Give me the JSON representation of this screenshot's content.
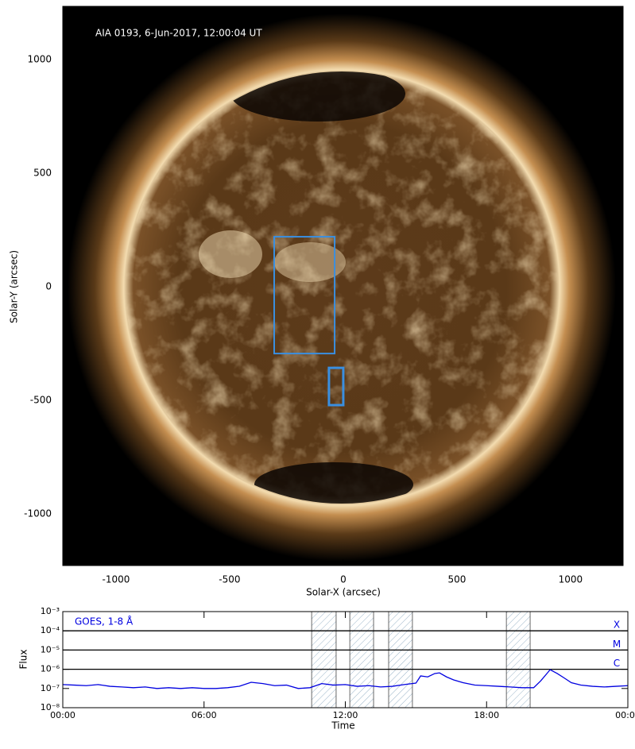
{
  "chart_data": [
    {
      "type": "image",
      "annotation": "AIA 0193, 6-Jun-2017, 12:00:04 UT",
      "x_label": "Solar-X (arcsec)",
      "y_label": "Solar-Y (arcsec)",
      "xlim": [
        -1234,
        1231
      ],
      "ylim": [
        -1227,
        1234
      ],
      "xticks": [
        -1000,
        -500,
        0,
        500,
        1000
      ],
      "yticks": [
        -1000,
        -500,
        0,
        500,
        1000
      ],
      "box_color": "#3a8fe0",
      "boxes": [
        {
          "x0": -304,
          "x1": -38,
          "y0": -294,
          "y1": 220
        },
        {
          "x0": -63,
          "x1": 0,
          "y0": -521,
          "y1": -357
        }
      ]
    },
    {
      "type": "line",
      "annotation": "GOES, 1-8 Å",
      "x_label": "Time",
      "y_label": "Flux",
      "log_y": true,
      "xlim": [
        0,
        24
      ],
      "ylim": [
        1e-08,
        0.001
      ],
      "xticks": [
        {
          "value": 0,
          "label": "00:00"
        },
        {
          "value": 6,
          "label": "06:00"
        },
        {
          "value": 12,
          "label": "12:00"
        },
        {
          "value": 18,
          "label": "18:00"
        },
        {
          "value": 24,
          "label": "00:00"
        }
      ],
      "yticks": [
        {
          "value": 1e-08,
          "label": "10⁻⁸"
        },
        {
          "value": 1e-07,
          "label": "10⁻⁷"
        },
        {
          "value": 1e-06,
          "label": "10⁻⁶"
        },
        {
          "value": 1e-05,
          "label": "10⁻⁵"
        },
        {
          "value": 0.0001,
          "label": "10⁻⁴"
        },
        {
          "value": 0.001,
          "label": "10⁻³"
        }
      ],
      "levels": [
        {
          "label": "X",
          "value": 0.0001
        },
        {
          "label": "M",
          "value": 1e-05
        },
        {
          "label": "C",
          "value": 1e-06
        }
      ],
      "shaded_ranges": [
        [
          10.57,
          11.61
        ],
        [
          12.19,
          13.2
        ],
        [
          13.84,
          14.85
        ],
        [
          18.84,
          19.85
        ]
      ],
      "series": [
        {
          "color": "#0000e0",
          "x": [
            0,
            0.5,
            1,
            1.5,
            2,
            2.5,
            3,
            3.5,
            4,
            4.5,
            5,
            5.5,
            6,
            6.5,
            7,
            7.5,
            8,
            8.5,
            9,
            9.5,
            10,
            10.5,
            11,
            11.5,
            12,
            12.5,
            13,
            13.5,
            14,
            14.5,
            15,
            15.2,
            15.5,
            15.8,
            16,
            16.3,
            16.6,
            17,
            17.5,
            18,
            18.5,
            19,
            19.5,
            20,
            20.3,
            20.7,
            21,
            21.3,
            21.6,
            22,
            22.5,
            23,
            23.5,
            24
          ],
          "values": [
            1.6e-07,
            1.5e-07,
            1.4e-07,
            1.6e-07,
            1.3e-07,
            1.2e-07,
            1.1e-07,
            1.2e-07,
            1e-07,
            1.1e-07,
            1e-07,
            1.1e-07,
            1e-07,
            1e-07,
            1.1e-07,
            1.3e-07,
            2.1e-07,
            1.8e-07,
            1.4e-07,
            1.5e-07,
            1e-07,
            1.1e-07,
            1.8e-07,
            1.5e-07,
            1.6e-07,
            1.3e-07,
            1.4e-07,
            1.2e-07,
            1.3e-07,
            1.6e-07,
            1.9e-07,
            4.5e-07,
            4e-07,
            6e-07,
            6.5e-07,
            4e-07,
            2.8e-07,
            2e-07,
            1.5e-07,
            1.4e-07,
            1.3e-07,
            1.2e-07,
            1.1e-07,
            1.1e-07,
            2.5e-07,
            9.5e-07,
            6e-07,
            3.5e-07,
            2e-07,
            1.5e-07,
            1.3e-07,
            1.2e-07,
            1.3e-07,
            1.4e-07
          ]
        }
      ]
    }
  ]
}
